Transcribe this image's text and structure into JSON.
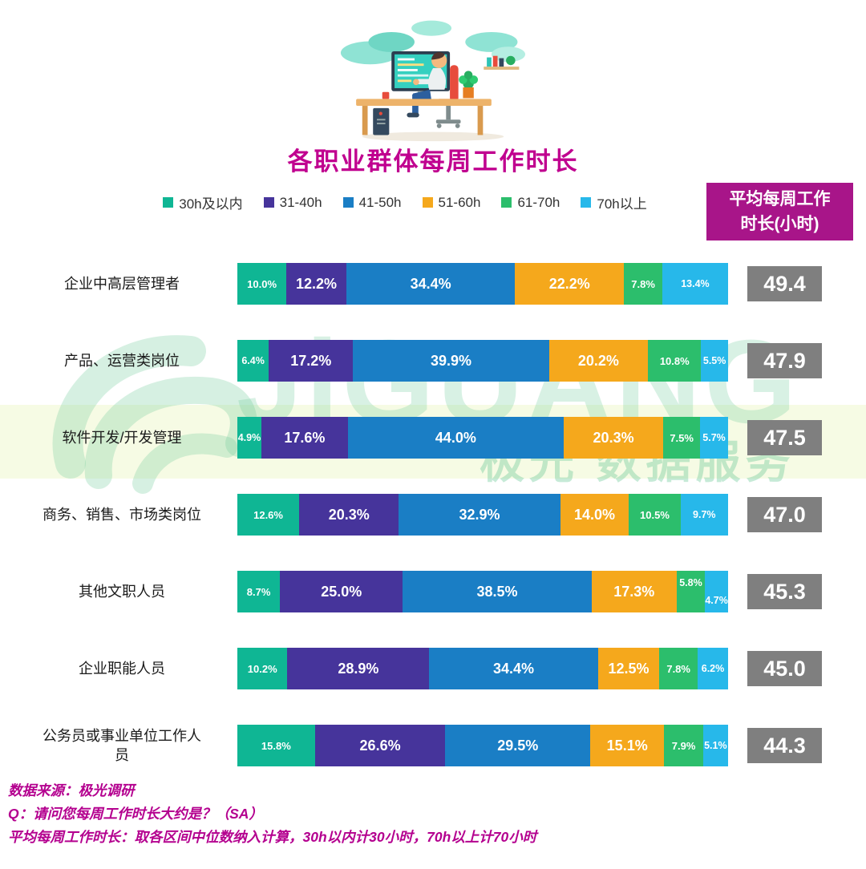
{
  "title": "各职业群体每周工作时长",
  "avg_header": {
    "line1": "平均每周工作",
    "line2": "时长(小时)"
  },
  "legend": [
    {
      "label": "30h及以内",
      "color": "#0FB694"
    },
    {
      "label": "31-40h",
      "color": "#46349B"
    },
    {
      "label": "41-50h",
      "color": "#1A7EC5"
    },
    {
      "label": "51-60h",
      "color": "#F5A81C"
    },
    {
      "label": "61-70h",
      "color": "#2CBE6C"
    },
    {
      "label": "70h以上",
      "color": "#27B8EA"
    }
  ],
  "chart_data": {
    "type": "bar",
    "orientation": "horizontal-stacked",
    "unit": "%",
    "xlim": [
      0,
      100
    ],
    "categories": [
      "企业中高层管理者",
      "产品、运营类岗位",
      "软件开发/开发管理",
      "商务、销售、市场类岗位",
      "其他文职人员",
      "企业职能人员",
      "公务员或事业单位工作人员"
    ],
    "series": [
      {
        "name": "30h及以内",
        "color": "#0FB694",
        "values": [
          10.0,
          6.4,
          4.9,
          12.6,
          8.7,
          10.2,
          15.8
        ]
      },
      {
        "name": "31-40h",
        "color": "#46349B",
        "values": [
          12.2,
          17.2,
          17.6,
          20.3,
          25.0,
          28.9,
          26.6
        ]
      },
      {
        "name": "41-50h",
        "color": "#1A7EC5",
        "values": [
          34.4,
          39.9,
          44.0,
          32.9,
          38.5,
          34.4,
          29.5
        ]
      },
      {
        "name": "51-60h",
        "color": "#F5A81C",
        "values": [
          22.2,
          20.2,
          20.3,
          14.0,
          17.3,
          12.5,
          15.1
        ]
      },
      {
        "name": "61-70h",
        "color": "#2CBE6C",
        "values": [
          7.8,
          10.8,
          7.5,
          10.5,
          5.8,
          7.8,
          7.9
        ]
      },
      {
        "name": "70h以上",
        "color": "#27B8EA",
        "values": [
          13.4,
          5.5,
          5.7,
          9.7,
          4.7,
          6.2,
          5.1
        ]
      }
    ],
    "averages_label": "平均每周工作时长(小时)",
    "averages": [
      49.4,
      47.9,
      47.5,
      47.0,
      45.3,
      45.0,
      44.3
    ]
  },
  "watermark": {
    "latin": "JiGUANG",
    "cn": "极光 数据服务"
  },
  "footer": {
    "line1": "数据来源：极光调研",
    "line2": "Q：请问您每周工作时长大约是？（SA）",
    "line3": "平均每周工作时长：取各区间中位数纳入计算，30h以内计30小时，70h以上计70小时"
  },
  "colors": {
    "title": "#C0008F",
    "footer_text": "#B4008F",
    "avg_header_bg": "#A81589",
    "avg_box_bg": "#7F7F7F",
    "watermark_green": "#69C896"
  }
}
